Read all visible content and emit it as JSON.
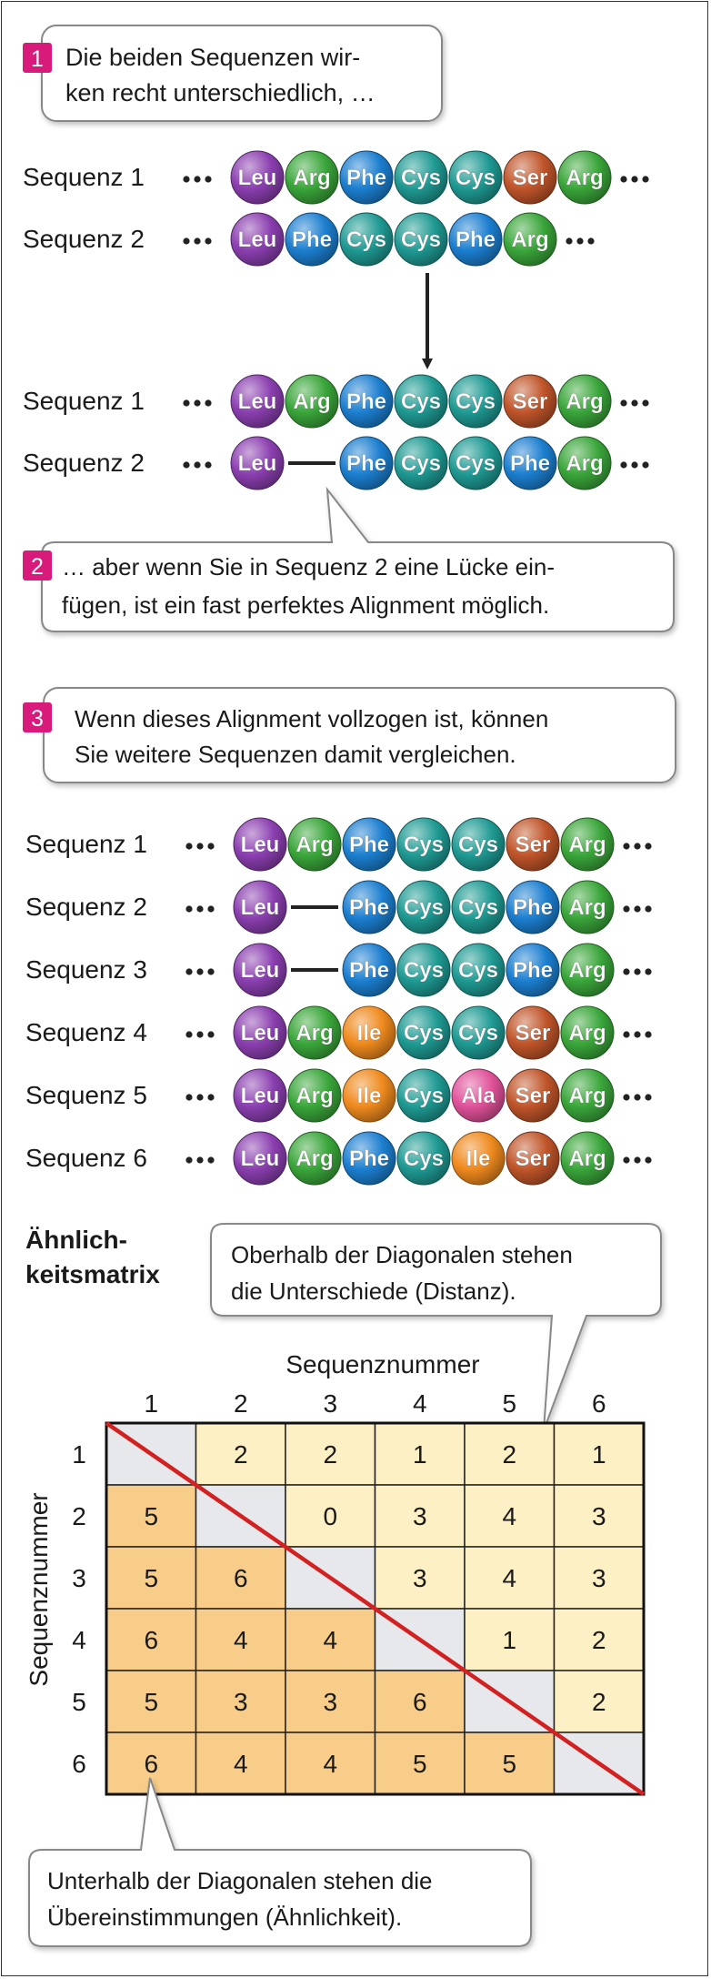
{
  "colors": {
    "Leu": "#8b3fb0",
    "Arg": "#3aa63a",
    "Phe": "#1c7fd0",
    "Cys": "#1f9a93",
    "Ser": "#c0552a",
    "Ile": "#ef8a1e",
    "Ala": "#e0529a",
    "badge": "#d81b7a",
    "matrix_upper": "#fdf0c4",
    "matrix_lower": "#f8cd8a",
    "matrix_diag": "#e6e8ec",
    "diag_line": "#d32020"
  },
  "step1": {
    "number": "1",
    "lines": [
      "Die beiden Sequenzen wir-",
      "ken recht unterschiedlich, …"
    ]
  },
  "step2": {
    "number": "2",
    "lines": [
      "… aber wenn Sie in Sequenz 2 eine Lücke ein-",
      "fügen, ist ein fast perfektes Alignment möglich."
    ]
  },
  "step3": {
    "number": "3",
    "lines": [
      "Wenn dieses Alignment vollzogen ist, können",
      "Sie weitere Sequenzen damit vergleichen."
    ]
  },
  "block1": [
    {
      "label": "Sequenz 1",
      "residues": [
        "Leu",
        "Arg",
        "Phe",
        "Cys",
        "Cys",
        "Ser",
        "Arg"
      ]
    },
    {
      "label": "Sequenz 2",
      "residues": [
        "Leu",
        "Phe",
        "Cys",
        "Cys",
        "Phe",
        "Arg"
      ]
    }
  ],
  "block2": [
    {
      "label": "Sequenz 1",
      "residues": [
        "Leu",
        "Arg",
        "Phe",
        "Cys",
        "Cys",
        "Ser",
        "Arg"
      ]
    },
    {
      "label": "Sequenz 2",
      "residues": [
        "Leu",
        "-",
        "Phe",
        "Cys",
        "Cys",
        "Phe",
        "Arg"
      ]
    }
  ],
  "block3": [
    {
      "label": "Sequenz 1",
      "residues": [
        "Leu",
        "Arg",
        "Phe",
        "Cys",
        "Cys",
        "Ser",
        "Arg"
      ]
    },
    {
      "label": "Sequenz 2",
      "residues": [
        "Leu",
        "-",
        "Phe",
        "Cys",
        "Cys",
        "Phe",
        "Arg"
      ]
    },
    {
      "label": "Sequenz 3",
      "residues": [
        "Leu",
        "-",
        "Phe",
        "Cys",
        "Cys",
        "Phe",
        "Arg"
      ]
    },
    {
      "label": "Sequenz 4",
      "residues": [
        "Leu",
        "Arg",
        "Ile",
        "Cys",
        "Cys",
        "Ser",
        "Arg"
      ]
    },
    {
      "label": "Sequenz 5",
      "residues": [
        "Leu",
        "Arg",
        "Ile",
        "Cys",
        "Ala",
        "Ser",
        "Arg"
      ]
    },
    {
      "label": "Sequenz 6",
      "residues": [
        "Leu",
        "Arg",
        "Phe",
        "Cys",
        "Ile",
        "Ser",
        "Arg"
      ]
    }
  ],
  "matrix": {
    "title_lines": [
      "Ähnlich-",
      "keitsmatrix"
    ],
    "col_axis_label": "Sequenznummer",
    "row_axis_label": "Sequenznummer",
    "headers": [
      "1",
      "2",
      "3",
      "4",
      "5",
      "6"
    ],
    "cells": [
      [
        "",
        "2",
        "2",
        "1",
        "2",
        "1"
      ],
      [
        "5",
        "",
        "0",
        "3",
        "4",
        "3"
      ],
      [
        "5",
        "6",
        "",
        "3",
        "4",
        "3"
      ],
      [
        "6",
        "4",
        "4",
        "",
        "1",
        "2"
      ],
      [
        "5",
        "3",
        "3",
        "6",
        "",
        "2"
      ],
      [
        "6",
        "4",
        "4",
        "5",
        "5",
        ""
      ]
    ],
    "callout_upper": [
      "Oberhalb der Diagonalen stehen",
      "die Unterschiede (Distanz)."
    ],
    "callout_lower": [
      "Unterhalb der Diagonalen stehen die",
      "Übereinstimmungen (Ähnlichkeit)."
    ]
  }
}
